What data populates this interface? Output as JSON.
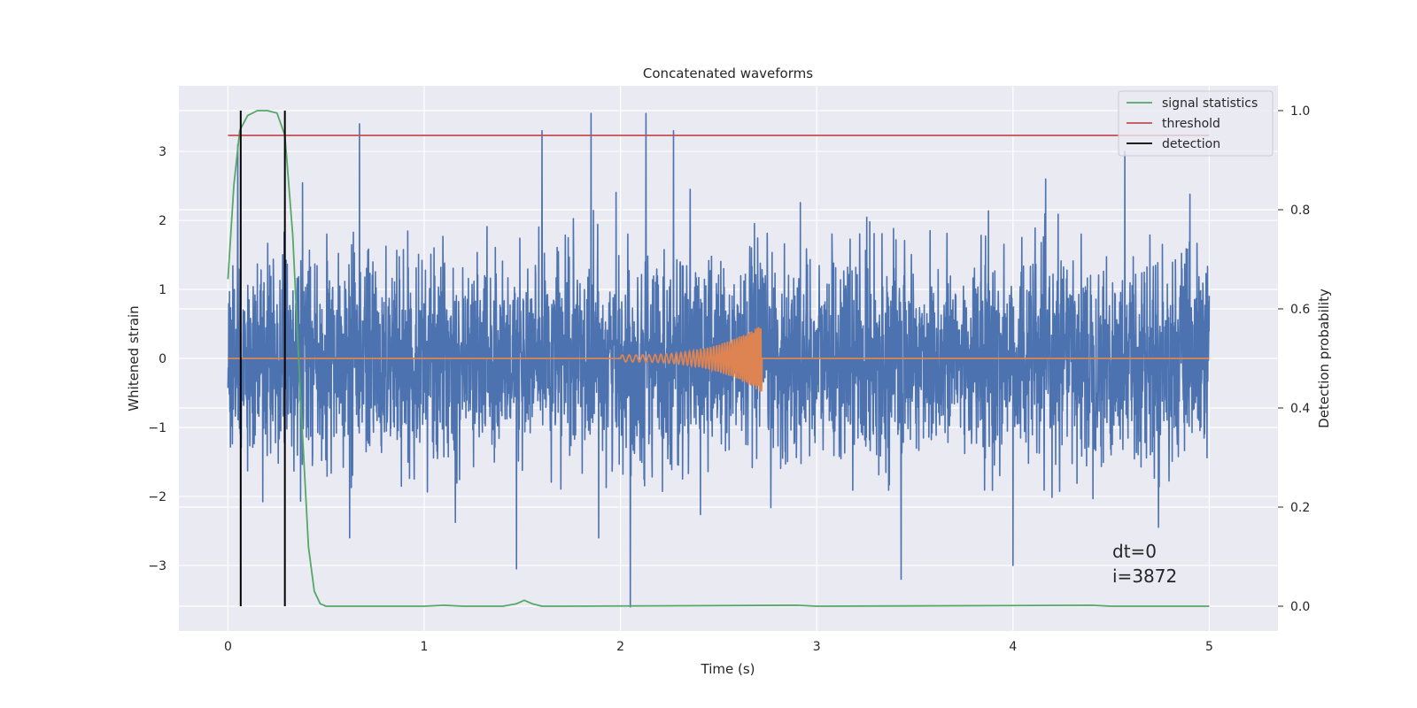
{
  "chart_data": {
    "type": "line",
    "title": "Concatenated waveforms",
    "xlabel": "Time (s)",
    "ylabel": "Whitened strain",
    "y2label": "Detection probability",
    "xlim": [
      -0.25,
      5.35
    ],
    "ylim": [
      -3.95,
      3.95
    ],
    "y2lim": [
      -0.05,
      1.05
    ],
    "xticks": [
      0,
      1,
      2,
      3,
      4,
      5
    ],
    "xtick_labels": [
      "0",
      "1",
      "2",
      "3",
      "4",
      "5"
    ],
    "yticks": [
      -3,
      -2,
      -1,
      0,
      1,
      2,
      3
    ],
    "ytick_labels": [
      "−3",
      "−2",
      "−1",
      "0",
      "1",
      "2",
      "3"
    ],
    "y2ticks": [
      0.0,
      0.2,
      0.4,
      0.6,
      0.8,
      1.0
    ],
    "y2tick_labels": [
      "0.0",
      "0.2",
      "0.4",
      "0.6",
      "0.8",
      "1.0"
    ],
    "grid": true,
    "legend_position": "top-right",
    "annotations": [
      "dt=0",
      "i=3872"
    ],
    "series": [
      {
        "name": "",
        "axis": "left",
        "color": "#4c72b0",
        "description": "whitened noisy strain, fluctuates roughly within ±2 with spikes near ±3.5",
        "x_range": [
          0,
          5
        ],
        "amplitude_typical": 1.5,
        "peaks": [
          {
            "x": 0.05,
            "y": 3.1
          },
          {
            "x": 0.67,
            "y": 3.4
          },
          {
            "x": 1.6,
            "y": 3.3
          },
          {
            "x": 1.85,
            "y": 3.55
          },
          {
            "x": 2.13,
            "y": 3.55
          },
          {
            "x": 2.27,
            "y": 3.3
          },
          {
            "x": 4.57,
            "y": 3.0
          },
          {
            "x": 2.05,
            "y": -3.6
          },
          {
            "x": 1.47,
            "y": -3.05
          },
          {
            "x": 3.43,
            "y": -3.2
          },
          {
            "x": 4.0,
            "y": -3.0
          }
        ]
      },
      {
        "name": "",
        "axis": "left",
        "color": "#dd8452",
        "description": "injected chirp signal, zero except between 2.0 s and 2.72 s",
        "x_range": [
          0,
          5
        ],
        "chirp_start": 2.0,
        "chirp_end": 2.72,
        "chirp_peak_amplitude": 0.5
      },
      {
        "name": "signal statistics",
        "axis": "right",
        "color": "#55a868",
        "x": [
          0.0,
          0.03,
          0.06,
          0.1,
          0.15,
          0.2,
          0.25,
          0.29,
          0.33,
          0.37,
          0.41,
          0.44,
          0.47,
          0.5,
          1.0,
          1.1,
          1.2,
          1.4,
          1.47,
          1.51,
          1.55,
          1.6,
          1.7,
          2.9,
          3.0,
          4.4,
          4.5,
          5.0
        ],
        "values": [
          0.66,
          0.85,
          0.96,
          0.99,
          1.0,
          1.0,
          0.995,
          0.95,
          0.75,
          0.42,
          0.12,
          0.03,
          0.005,
          0.0,
          0.0,
          0.002,
          0.0,
          0.0,
          0.005,
          0.012,
          0.005,
          0.0,
          0.0,
          0.002,
          0.0,
          0.002,
          0.0,
          0.0
        ]
      },
      {
        "name": "threshold",
        "axis": "right",
        "color": "#c44e52",
        "x": [
          0,
          5
        ],
        "values": [
          0.95,
          0.95
        ]
      },
      {
        "name": "detection",
        "axis": "right",
        "color": "#000000",
        "type": "vlines",
        "x": [
          0.065,
          0.29
        ],
        "range": [
          0.0,
          1.0
        ]
      }
    ]
  }
}
